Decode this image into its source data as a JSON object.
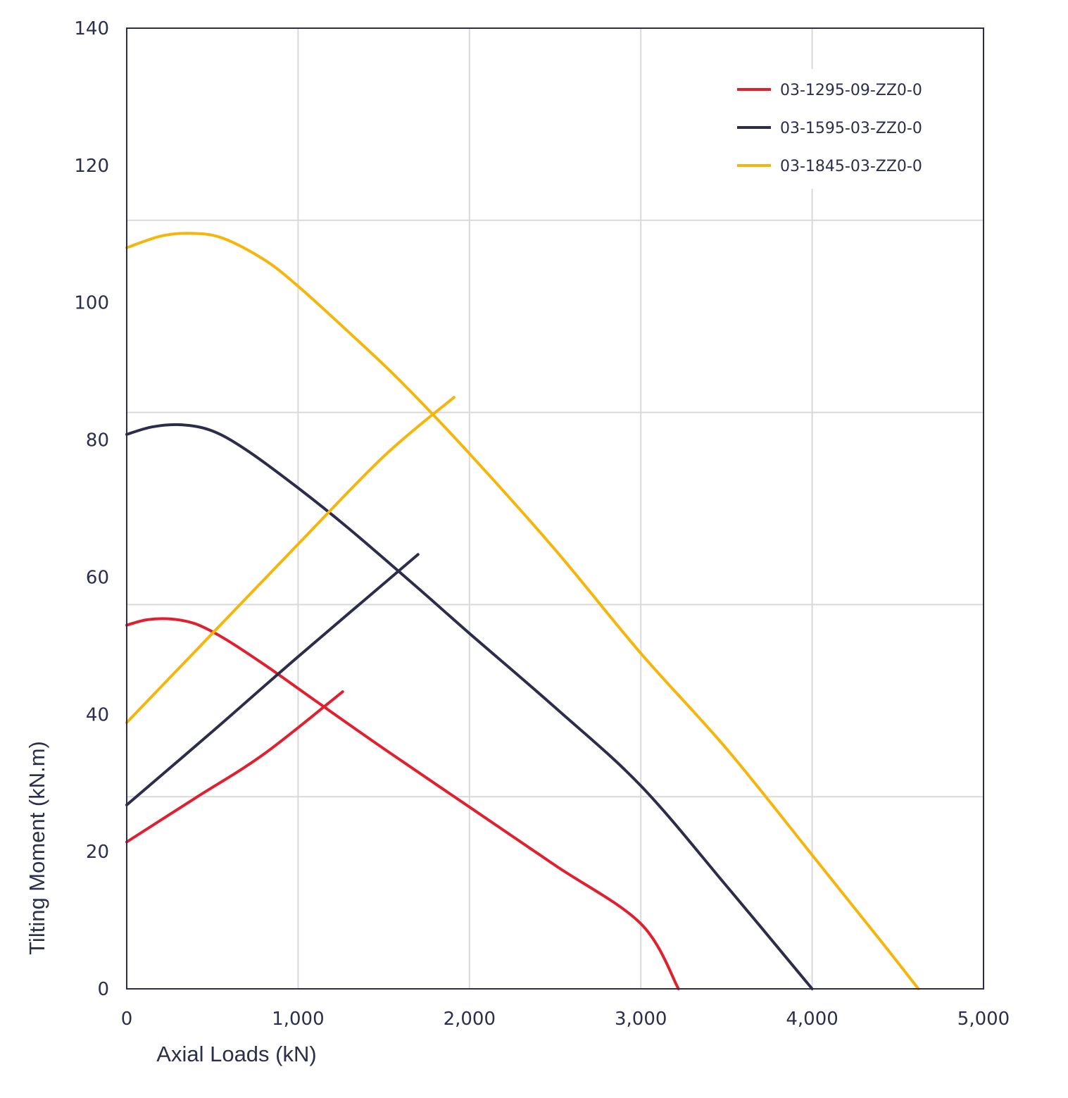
{
  "chart_data": {
    "type": "line",
    "xlabel": "Axial Loads (kN)",
    "ylabel": "Tilting Moment (kN.m)",
    "xlim": [
      0,
      5000
    ],
    "ylim": [
      0,
      140
    ],
    "x_ticks": [
      {
        "value": 0,
        "label": "0"
      },
      {
        "value": 1000,
        "label": "1,000"
      },
      {
        "value": 2000,
        "label": "2,000"
      },
      {
        "value": 3000,
        "label": "3,000"
      },
      {
        "value": 4000,
        "label": "4,000"
      },
      {
        "value": 5000,
        "label": "5,000"
      }
    ],
    "y_ticks": [
      {
        "value": 0,
        "label": "0"
      },
      {
        "value": 20,
        "label": "20"
      },
      {
        "value": 40,
        "label": "40"
      },
      {
        "value": 60,
        "label": "60"
      },
      {
        "value": 80,
        "label": "80"
      },
      {
        "value": 100,
        "label": "100"
      },
      {
        "value": 120,
        "label": "120"
      },
      {
        "value": 140,
        "label": "140"
      }
    ],
    "grid": true,
    "legend_position": "top-right",
    "series": [
      {
        "name": "03-1295-09-ZZ0-0",
        "color": "#e0202e",
        "curves": [
          [
            [
              0,
              53.0
            ],
            [
              120,
              53.8
            ],
            [
              260,
              53.9
            ],
            [
              400,
              53.2
            ],
            [
              560,
              51.2
            ],
            [
              800,
              47.3
            ],
            [
              1100,
              42.0
            ],
            [
              1500,
              35.0
            ],
            [
              2000,
              26.5
            ],
            [
              2500,
              18.0
            ],
            [
              3000,
              9.5
            ],
            [
              3220,
              0
            ]
          ],
          [
            [
              0,
              21.4
            ],
            [
              400,
              27.8
            ],
            [
              800,
              34.2
            ],
            [
              1260,
              43.3
            ]
          ]
        ]
      },
      {
        "name": "03-1595-03-ZZ0-0",
        "color": "#2b2d4b",
        "curves": [
          [
            [
              0,
              80.8
            ],
            [
              150,
              81.9
            ],
            [
              320,
              82.2
            ],
            [
              500,
              81.3
            ],
            [
              700,
              78.5
            ],
            [
              1000,
              73.0
            ],
            [
              1300,
              67.0
            ],
            [
              1700,
              58.4
            ],
            [
              2000,
              51.8
            ],
            [
              2500,
              41.0
            ],
            [
              3000,
              29.6
            ],
            [
              3500,
              15.0
            ],
            [
              4000,
              0
            ]
          ],
          [
            [
              0,
              26.8
            ],
            [
              500,
              37.5
            ],
            [
              1000,
              48.4
            ],
            [
              1700,
              63.3
            ]
          ]
        ]
      },
      {
        "name": "03-1845-03-ZZ0-0",
        "color": "#f5b50a",
        "curves": [
          [
            [
              0,
              108.0
            ],
            [
              200,
              109.7
            ],
            [
              380,
              110.1
            ],
            [
              560,
              109.4
            ],
            [
              800,
              106.3
            ],
            [
              1000,
              102.4
            ],
            [
              1300,
              95.6
            ],
            [
              1600,
              88.5
            ],
            [
              2000,
              78.0
            ],
            [
              2500,
              64.0
            ],
            [
              3000,
              48.9
            ],
            [
              3500,
              35.0
            ],
            [
              4000,
              19.5
            ],
            [
              4400,
              7.0
            ],
            [
              4620,
              0
            ]
          ],
          [
            [
              0,
              38.8
            ],
            [
              500,
              51.8
            ],
            [
              1000,
              64.8
            ],
            [
              1500,
              77.6
            ],
            [
              1910,
              86.2
            ]
          ]
        ]
      }
    ]
  }
}
